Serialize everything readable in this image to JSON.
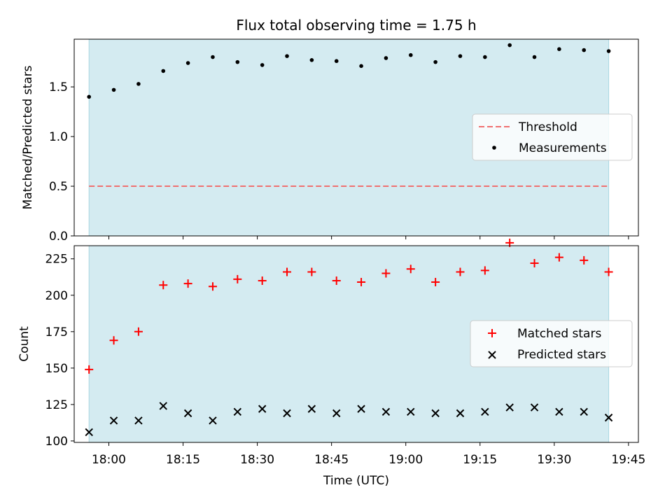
{
  "chart_data": [
    {
      "type": "scatter",
      "title": "Flux total observing time = 1.75 h",
      "xlabel": "",
      "ylabel": "Matched/Predicted stars",
      "xlim": [
        "17:53",
        "19:47"
      ],
      "ylim": [
        0,
        1.98
      ],
      "yticks": [
        0,
        0.5,
        1.0,
        1.5
      ],
      "ytick_labels": [
        "0.0",
        "0.5",
        "1.0",
        "1.5"
      ],
      "shaded_span": [
        "17:56",
        "19:41"
      ],
      "threshold": {
        "name": "Threshold",
        "value": 0.5,
        "color": "#f07070"
      },
      "series": [
        {
          "name": "Measurements",
          "marker": "dot",
          "color": "#000000",
          "x": [
            "17:56",
            "18:01",
            "18:06",
            "18:11",
            "18:16",
            "18:21",
            "18:26",
            "18:31",
            "18:36",
            "18:41",
            "18:46",
            "18:51",
            "18:56",
            "19:01",
            "19:06",
            "19:11",
            "19:16",
            "19:21",
            "19:26",
            "19:31",
            "19:36",
            "19:41"
          ],
          "values": [
            1.4,
            1.47,
            1.53,
            1.66,
            1.74,
            1.8,
            1.75,
            1.72,
            1.81,
            1.77,
            1.76,
            1.71,
            1.79,
            1.82,
            1.75,
            1.81,
            1.8,
            1.92,
            1.8,
            1.88,
            1.87,
            1.86
          ]
        }
      ],
      "legend": {
        "placement": "center-right",
        "entries": [
          "Threshold",
          "Measurements"
        ]
      }
    },
    {
      "type": "scatter",
      "xlabel": "Time (UTC)",
      "ylabel": "Count",
      "xlim": [
        "17:53",
        "19:47"
      ],
      "ylim": [
        99,
        234
      ],
      "yticks": [
        100,
        125,
        150,
        175,
        200,
        225
      ],
      "ytick_labels": [
        "100",
        "125",
        "150",
        "175",
        "200",
        "225"
      ],
      "xticks": [
        "18:00",
        "18:15",
        "18:30",
        "18:45",
        "19:00",
        "19:15",
        "19:30",
        "19:45"
      ],
      "shaded_span": [
        "17:56",
        "19:41"
      ],
      "series": [
        {
          "name": "Matched stars",
          "marker": "plus",
          "color": "#ff0000",
          "x": [
            "17:56",
            "18:01",
            "18:06",
            "18:11",
            "18:16",
            "18:21",
            "18:26",
            "18:31",
            "18:36",
            "18:41",
            "18:46",
            "18:51",
            "18:56",
            "19:01",
            "19:06",
            "19:11",
            "19:16",
            "19:21",
            "19:26",
            "19:31",
            "19:36",
            "19:41"
          ],
          "values": [
            149,
            169,
            175,
            207,
            208,
            206,
            211,
            210,
            216,
            216,
            210,
            209,
            215,
            218,
            209,
            216,
            217,
            236,
            222,
            226,
            224,
            216
          ]
        },
        {
          "name": "Predicted stars",
          "marker": "x",
          "color": "#000000",
          "x": [
            "17:56",
            "18:01",
            "18:06",
            "18:11",
            "18:16",
            "18:21",
            "18:26",
            "18:31",
            "18:36",
            "18:41",
            "18:46",
            "18:51",
            "18:56",
            "19:01",
            "19:06",
            "19:11",
            "19:16",
            "19:21",
            "19:26",
            "19:31",
            "19:36",
            "19:41"
          ],
          "values": [
            106,
            114,
            114,
            124,
            119,
            114,
            120,
            122,
            119,
            122,
            119,
            122,
            120,
            120,
            119,
            119,
            120,
            123,
            123,
            120,
            120,
            116
          ]
        }
      ],
      "legend": {
        "placement": "center-right",
        "entries": [
          "Matched stars",
          "Predicted stars"
        ]
      }
    }
  ],
  "colors": {
    "shade": "#d4ebf1",
    "threshold": "#f07070",
    "matched": "#ff0000",
    "predicted": "#000000",
    "measurement": "#000000"
  }
}
